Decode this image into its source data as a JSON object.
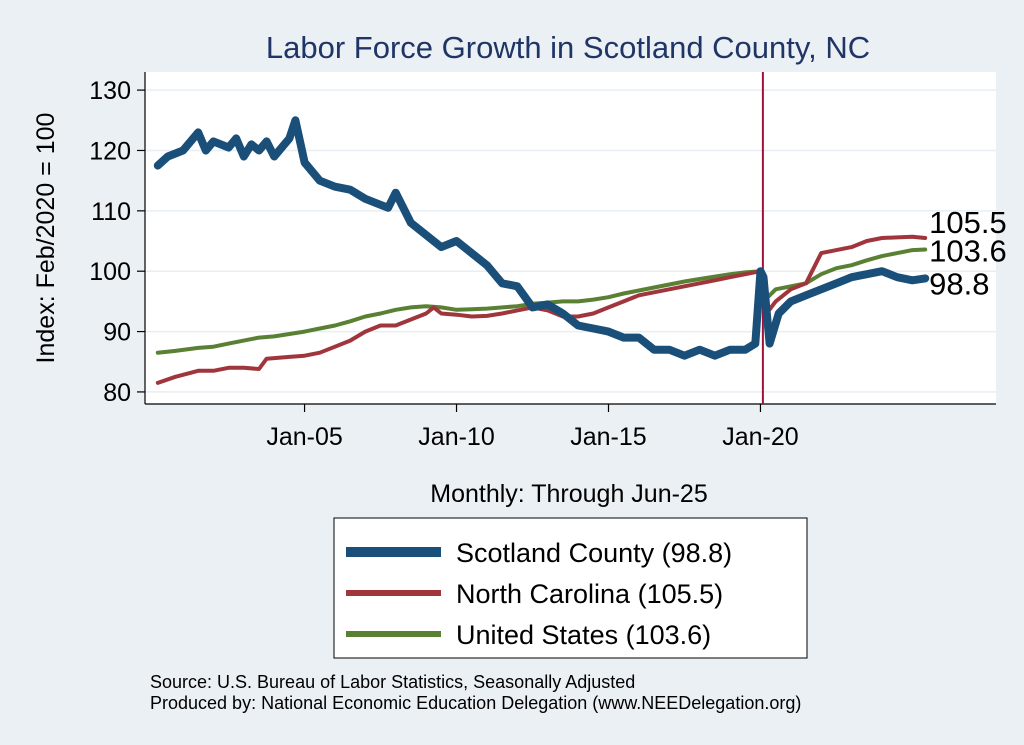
{
  "chart_data": {
    "type": "line",
    "title": "Labor Force Growth in Scotland  County, NC",
    "xlabel": "Monthly: Through Jun-25",
    "ylabel": "Index: Feb/2020 = 100",
    "xlim": [
      1999.75,
      2027.75
    ],
    "ylim": [
      78,
      133
    ],
    "x_ticks": [
      {
        "value": 2005,
        "label": "Jan-05"
      },
      {
        "value": 2010,
        "label": "Jan-10"
      },
      {
        "value": 2015,
        "label": "Jan-15"
      },
      {
        "value": 2020,
        "label": "Jan-20"
      }
    ],
    "y_ticks": [
      80,
      90,
      100,
      110,
      120,
      130
    ],
    "reference_line": {
      "x": 2020.08,
      "color": "#a0123a"
    },
    "series": [
      {
        "name": "Scotland  County",
        "legend": "Scotland  County (98.8)",
        "color": "#1a4f7a",
        "width": 8,
        "end_label": "98.8",
        "points": [
          [
            2000.17,
            117.5
          ],
          [
            2000.5,
            119
          ],
          [
            2001,
            120
          ],
          [
            2001.5,
            123
          ],
          [
            2001.75,
            120
          ],
          [
            2002,
            121.5
          ],
          [
            2002.5,
            120.5
          ],
          [
            2002.75,
            122
          ],
          [
            2003,
            119
          ],
          [
            2003.25,
            121
          ],
          [
            2003.5,
            120
          ],
          [
            2003.75,
            121.5
          ],
          [
            2004,
            119
          ],
          [
            2004.5,
            122
          ],
          [
            2004.7,
            125
          ],
          [
            2005,
            118
          ],
          [
            2005.5,
            115
          ],
          [
            2006,
            114
          ],
          [
            2006.5,
            113.5
          ],
          [
            2007,
            112
          ],
          [
            2007.5,
            111
          ],
          [
            2007.75,
            110.5
          ],
          [
            2008,
            113
          ],
          [
            2008.5,
            108
          ],
          [
            2009,
            106
          ],
          [
            2009.5,
            104
          ],
          [
            2010,
            105
          ],
          [
            2010.5,
            103
          ],
          [
            2011,
            101
          ],
          [
            2011.5,
            98
          ],
          [
            2012,
            97.5
          ],
          [
            2012.5,
            94
          ],
          [
            2013,
            94.5
          ],
          [
            2013.5,
            93
          ],
          [
            2014,
            91
          ],
          [
            2014.5,
            90.5
          ],
          [
            2015,
            90
          ],
          [
            2015.5,
            89
          ],
          [
            2016,
            89
          ],
          [
            2016.5,
            87
          ],
          [
            2017,
            87
          ],
          [
            2017.5,
            86
          ],
          [
            2018,
            87
          ],
          [
            2018.5,
            86
          ],
          [
            2019,
            87
          ],
          [
            2019.5,
            87
          ],
          [
            2019.83,
            88
          ],
          [
            2020,
            100
          ],
          [
            2020.1,
            99
          ],
          [
            2020.3,
            88
          ],
          [
            2020.6,
            93
          ],
          [
            2021,
            95
          ],
          [
            2021.5,
            96
          ],
          [
            2022,
            97
          ],
          [
            2022.5,
            98
          ],
          [
            2023,
            99
          ],
          [
            2023.5,
            99.5
          ],
          [
            2024,
            100
          ],
          [
            2024.5,
            99
          ],
          [
            2025,
            98.5
          ],
          [
            2025.42,
            98.8
          ]
        ]
      },
      {
        "name": "North Carolina",
        "legend": "North Carolina (105.5)",
        "color": "#a0363c",
        "width": 4,
        "end_label": "105.5",
        "points": [
          [
            2000.17,
            81.5
          ],
          [
            2000.75,
            82.5
          ],
          [
            2001.5,
            83.5
          ],
          [
            2002,
            83.5
          ],
          [
            2002.5,
            84
          ],
          [
            2003,
            84
          ],
          [
            2003.5,
            83.8
          ],
          [
            2003.75,
            85.5
          ],
          [
            2004.5,
            85.8
          ],
          [
            2005,
            86
          ],
          [
            2005.5,
            86.5
          ],
          [
            2006,
            87.5
          ],
          [
            2006.5,
            88.5
          ],
          [
            2007,
            90
          ],
          [
            2007.5,
            91
          ],
          [
            2008,
            91
          ],
          [
            2008.5,
            92
          ],
          [
            2009,
            93
          ],
          [
            2009.25,
            94
          ],
          [
            2009.5,
            93
          ],
          [
            2010,
            92.8
          ],
          [
            2010.5,
            92.5
          ],
          [
            2011,
            92.6
          ],
          [
            2011.5,
            93
          ],
          [
            2012,
            93.5
          ],
          [
            2012.5,
            94
          ],
          [
            2013,
            93.5
          ],
          [
            2013.5,
            92.5
          ],
          [
            2014,
            92.5
          ],
          [
            2014.5,
            93
          ],
          [
            2015,
            94
          ],
          [
            2015.5,
            95
          ],
          [
            2016,
            96
          ],
          [
            2016.5,
            96.5
          ],
          [
            2017,
            97
          ],
          [
            2017.5,
            97.5
          ],
          [
            2018,
            98
          ],
          [
            2018.5,
            98.5
          ],
          [
            2019,
            99
          ],
          [
            2019.5,
            99.5
          ],
          [
            2020,
            100
          ],
          [
            2020.08,
            99.5
          ],
          [
            2020.2,
            93
          ],
          [
            2020.5,
            95
          ],
          [
            2021,
            97
          ],
          [
            2021.5,
            98
          ],
          [
            2022,
            103
          ],
          [
            2022.5,
            103.5
          ],
          [
            2023,
            104
          ],
          [
            2023.5,
            105
          ],
          [
            2024,
            105.5
          ],
          [
            2024.5,
            105.6
          ],
          [
            2025,
            105.7
          ],
          [
            2025.42,
            105.5
          ]
        ]
      },
      {
        "name": "United States",
        "legend": "United States (103.6)",
        "color": "#5a8034",
        "width": 4,
        "end_label": "103.6",
        "points": [
          [
            2000.17,
            86.5
          ],
          [
            2000.75,
            86.8
          ],
          [
            2001.5,
            87.3
          ],
          [
            2002,
            87.5
          ],
          [
            2002.5,
            88
          ],
          [
            2003,
            88.5
          ],
          [
            2003.5,
            89
          ],
          [
            2004,
            89.2
          ],
          [
            2004.5,
            89.6
          ],
          [
            2005,
            90
          ],
          [
            2005.5,
            90.5
          ],
          [
            2006,
            91
          ],
          [
            2006.5,
            91.7
          ],
          [
            2007,
            92.5
          ],
          [
            2007.5,
            93
          ],
          [
            2008,
            93.6
          ],
          [
            2008.5,
            94
          ],
          [
            2009,
            94.2
          ],
          [
            2009.5,
            94
          ],
          [
            2010,
            93.6
          ],
          [
            2010.5,
            93.7
          ],
          [
            2011,
            93.8
          ],
          [
            2012,
            94.2
          ],
          [
            2012.5,
            94.6
          ],
          [
            2013,
            94.8
          ],
          [
            2013.5,
            95
          ],
          [
            2014,
            95
          ],
          [
            2014.5,
            95.3
          ],
          [
            2015,
            95.7
          ],
          [
            2015.5,
            96.3
          ],
          [
            2016,
            96.8
          ],
          [
            2016.5,
            97.3
          ],
          [
            2017,
            97.8
          ],
          [
            2017.5,
            98.3
          ],
          [
            2018,
            98.7
          ],
          [
            2018.5,
            99.1
          ],
          [
            2019,
            99.5
          ],
          [
            2019.5,
            99.8
          ],
          [
            2020,
            100
          ],
          [
            2020.08,
            99.5
          ],
          [
            2020.2,
            95.5
          ],
          [
            2020.5,
            97
          ],
          [
            2021,
            97.5
          ],
          [
            2021.5,
            98
          ],
          [
            2022,
            99.5
          ],
          [
            2022.5,
            100.5
          ],
          [
            2023,
            101
          ],
          [
            2023.5,
            101.8
          ],
          [
            2024,
            102.5
          ],
          [
            2024.5,
            103
          ],
          [
            2025,
            103.5
          ],
          [
            2025.42,
            103.6
          ]
        ]
      }
    ],
    "source_lines": [
      "Source: U.S. Bureau of Labor Statistics, Seasonally Adjusted",
      "Produced by: National Economic Education Delegation (www.NEEDelegation.org)"
    ]
  },
  "colors": {
    "background": "#ebf0f5",
    "plot_background": "#ffffff",
    "gridline": "#e8eef3",
    "title": "#1f3566",
    "reference_line": "#a0123a"
  }
}
